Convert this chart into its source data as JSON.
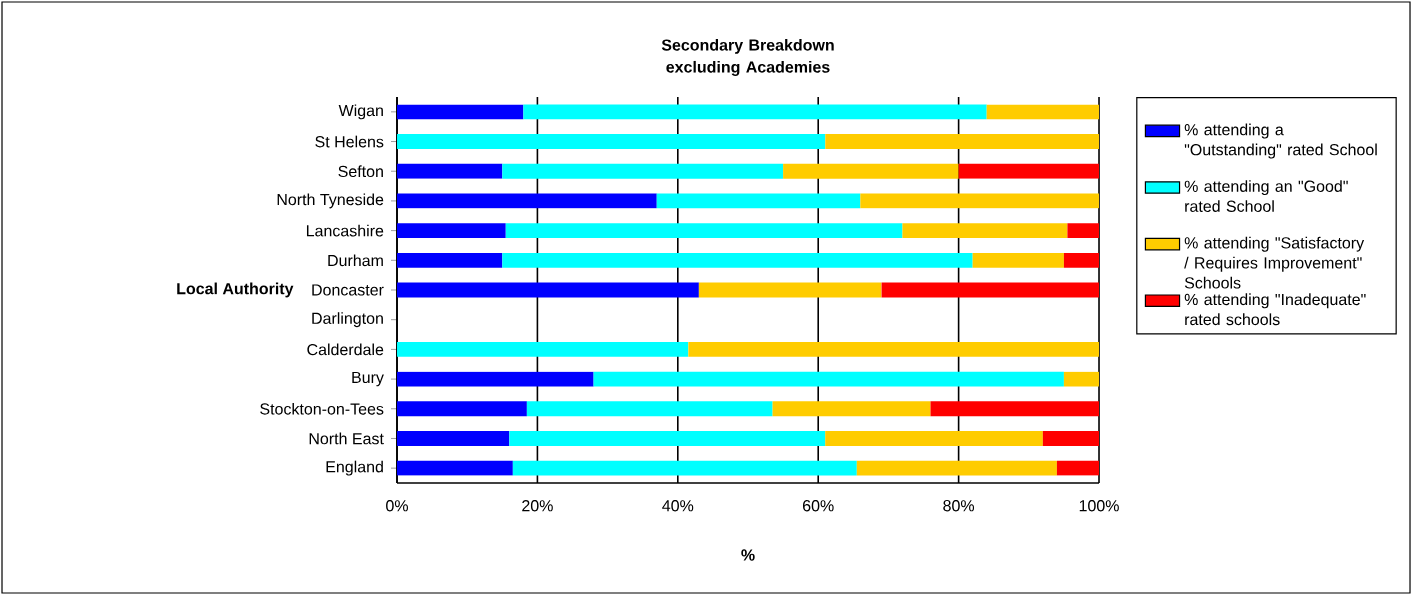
{
  "chart_data": {
    "type": "bar",
    "orientation": "horizontal",
    "stacked": true,
    "title": "Secondary Breakdown excluding Academies",
    "xlabel": "%",
    "ylabel": "Local Authority",
    "categories": [
      "Wigan",
      "St Helens",
      "Sefton",
      "North Tyneside",
      "Lancashire",
      "Durham",
      "Doncaster",
      "Darlington",
      "Calderdale",
      "Bury",
      "Stockton-on-Tees",
      "North East",
      "England"
    ],
    "series": [
      {
        "name": "% attending a \"Outstanding\" rated School",
        "color": "#0000ff",
        "values": [
          18,
          0,
          15,
          37,
          15.5,
          15,
          43,
          null,
          0,
          28,
          18.5,
          16,
          16.5
        ]
      },
      {
        "name": "% attending an \"Good\" rated School",
        "color": "#00ffff",
        "values": [
          66,
          61,
          40,
          29,
          56.5,
          67,
          0,
          null,
          41.5,
          67,
          35,
          45,
          49
        ]
      },
      {
        "name": "% attending \"Satisfactory / Requires Improvement\" Schools",
        "color": "#ffcc00",
        "values": [
          16,
          39,
          25,
          34,
          23.5,
          13,
          26,
          null,
          58.5,
          5,
          22.5,
          31,
          28.5
        ]
      },
      {
        "name": "% attending \"Inadequate\" rated schools",
        "color": "#ff0000",
        "values": [
          0,
          0,
          20,
          0,
          4.5,
          5,
          31,
          null,
          0,
          0,
          24,
          8,
          6
        ]
      }
    ],
    "xlim": [
      0,
      100
    ],
    "xticks": [
      {
        "value": 0,
        "label": "0%"
      },
      {
        "value": 20,
        "label": "20%"
      },
      {
        "value": 40,
        "label": "40%"
      },
      {
        "value": 60,
        "label": "60%"
      },
      {
        "value": 80,
        "label": "80%"
      },
      {
        "value": 100,
        "label": "100%"
      }
    ],
    "grid": "x",
    "legend": "right"
  }
}
